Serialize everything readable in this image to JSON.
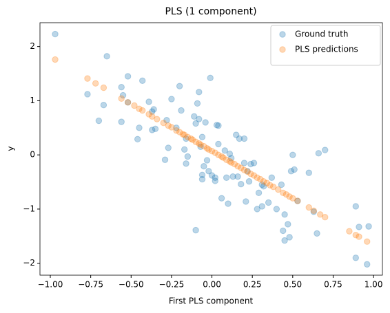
{
  "chart_data": {
    "type": "scatter",
    "title": "PLS (1 component)",
    "x_label": "First PLS component",
    "y_label": "y",
    "xlim": [
      -1.064,
      1.055
    ],
    "ylim": [
      -2.22,
      2.44
    ],
    "xticks": [
      {
        "value": -1,
        "label": "−1.00"
      },
      {
        "value": -0.75,
        "label": "−0.75"
      },
      {
        "value": -0.5,
        "label": "−0.50"
      },
      {
        "value": -0.25,
        "label": "−0.25"
      },
      {
        "value": 0,
        "label": "0.00"
      },
      {
        "value": 0.25,
        "label": "0.25"
      },
      {
        "value": 0.5,
        "label": "0.50"
      },
      {
        "value": 0.75,
        "label": "0.75"
      },
      {
        "value": 1,
        "label": "1.00"
      }
    ],
    "yticks": [
      {
        "value": -2,
        "label": "−2"
      },
      {
        "value": -1,
        "label": "−1"
      },
      0,
      1,
      2
    ],
    "grid": false,
    "legend": "upper right",
    "alpha": 0.3,
    "series": [
      {
        "name": "Ground truth",
        "color": "#1f77b4",
        "x": [
          -0.97,
          -0.65,
          -0.77,
          -0.7,
          -0.67,
          -0.56,
          -0.55,
          -0.52,
          -0.56,
          -0.45,
          -0.43,
          -0.46,
          -0.39,
          -0.36,
          -0.37,
          -0.35,
          -0.37,
          -0.28,
          -0.29,
          -0.27,
          -0.25,
          -0.22,
          -0.2,
          -0.19,
          -0.16,
          -0.17,
          -0.16,
          -0.15,
          -0.11,
          -0.1,
          -0.09,
          -0.08,
          -0.1,
          -0.08,
          -0.07,
          -0.06,
          -0.05,
          -0.04,
          -0.06,
          -0.06,
          -0.03,
          -0.02,
          -0.01,
          0.0,
          0.02,
          0.02,
          0.03,
          0.04,
          0.04,
          0.06,
          0.08,
          0.09,
          0.1,
          0.11,
          0.12,
          0.13,
          0.15,
          0.16,
          0.17,
          0.18,
          0.2,
          0.2,
          0.21,
          0.22,
          0.23,
          0.24,
          0.26,
          0.28,
          0.29,
          0.31,
          0.31,
          0.32,
          0.35,
          0.37,
          0.4,
          0.43,
          0.44,
          0.45,
          0.45,
          0.47,
          0.48,
          0.49,
          0.5,
          0.51,
          0.53,
          0.6,
          0.63,
          0.65,
          0.66,
          0.7,
          0.89,
          0.89,
          0.91,
          0.97,
          0.96,
          -0.52
        ],
        "values": [
          2.23,
          1.82,
          1.12,
          0.63,
          0.92,
          1.25,
          1.1,
          1.45,
          0.61,
          0.5,
          1.37,
          0.29,
          0.98,
          0.84,
          0.8,
          0.48,
          0.46,
          0.64,
          -0.09,
          0.13,
          1.03,
          0.5,
          1.27,
          0.82,
          0.3,
          0.1,
          -0.16,
          -0.03,
          0.71,
          0.58,
          0.95,
          0.66,
          -1.39,
          1.16,
          0.15,
          0.33,
          -0.21,
          0.6,
          -0.37,
          -0.45,
          -0.1,
          -0.3,
          1.42,
          -0.38,
          -0.48,
          -0.42,
          0.55,
          0.54,
          0.2,
          -0.8,
          0.08,
          -0.42,
          -0.9,
          0.02,
          -0.06,
          -0.4,
          0.37,
          -0.4,
          0.3,
          -0.54,
          0.3,
          -0.15,
          -0.86,
          -0.3,
          -0.49,
          -0.17,
          -0.15,
          -1.0,
          -0.7,
          -0.55,
          -0.95,
          -0.58,
          -0.88,
          -0.42,
          -1.0,
          -0.55,
          -1.4,
          -1.1,
          -1.58,
          -1.28,
          -1.52,
          -0.3,
          0.0,
          -0.27,
          -0.85,
          -0.33,
          -1.05,
          -1.45,
          0.03,
          0.09,
          -0.95,
          -1.9,
          -1.33,
          -1.32,
          -2.02,
          0.97
        ]
      },
      {
        "name": "PLS predictions",
        "color": "#ff7f0e",
        "x": [
          -0.97,
          -0.77,
          -0.72,
          -0.67,
          -0.56,
          -0.52,
          -0.48,
          -0.45,
          -0.43,
          -0.39,
          -0.37,
          -0.34,
          -0.3,
          -0.27,
          -0.25,
          -0.22,
          -0.2,
          -0.18,
          -0.17,
          -0.15,
          -0.13,
          -0.12,
          -0.1,
          -0.08,
          -0.07,
          -0.05,
          -0.03,
          -0.02,
          0,
          0.02,
          0.04,
          0.06,
          0.07,
          0.09,
          0.11,
          0.12,
          0.14,
          0.16,
          0.18,
          0.2,
          0.22,
          0.24,
          0.26,
          0.28,
          0.3,
          0.32,
          0.34,
          0.36,
          0.38,
          0.41,
          0.44,
          0.46,
          0.48,
          0.5,
          0.53,
          0.6,
          0.63,
          0.67,
          0.7,
          0.85,
          0.89,
          0.91,
          0.96
        ],
        "values": [
          1.76,
          1.41,
          1.32,
          1.24,
          1.04,
          0.97,
          0.91,
          0.85,
          0.82,
          0.75,
          0.71,
          0.66,
          0.59,
          0.54,
          0.51,
          0.45,
          0.42,
          0.38,
          0.37,
          0.33,
          0.3,
          0.28,
          0.24,
          0.21,
          0.19,
          0.16,
          0.12,
          0.1,
          0.07,
          0.04,
          0.0,
          -0.03,
          -0.05,
          -0.09,
          -0.12,
          -0.14,
          -0.17,
          -0.21,
          -0.24,
          -0.28,
          -0.31,
          -0.35,
          -0.38,
          -0.42,
          -0.45,
          -0.49,
          -0.52,
          -0.56,
          -0.59,
          -0.64,
          -0.7,
          -0.73,
          -0.77,
          -0.8,
          -0.85,
          -0.97,
          -1.03,
          -1.1,
          -1.15,
          -1.41,
          -1.48,
          -1.51,
          -1.6
        ]
      }
    ]
  }
}
